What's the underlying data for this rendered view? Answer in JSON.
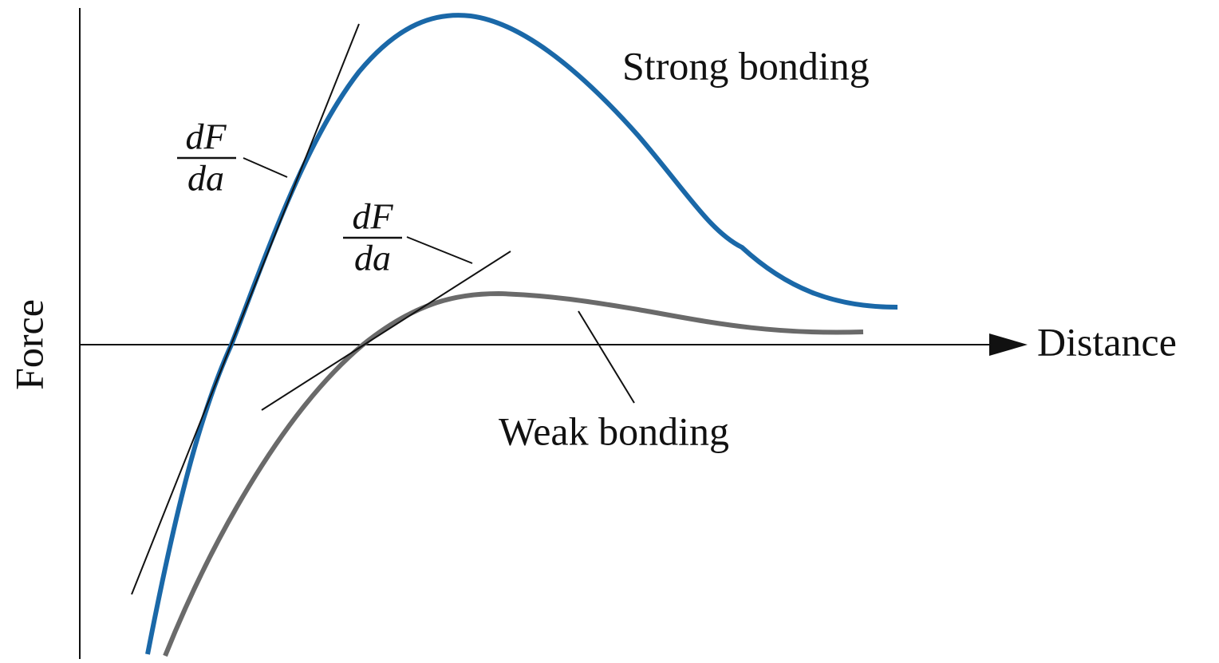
{
  "axes": {
    "y_label": "Force",
    "x_label": "Distance"
  },
  "curves": [
    {
      "label": "Strong bonding"
    },
    {
      "label": "Weak bonding"
    }
  ],
  "annotations": [
    {
      "numerator": "dF",
      "denominator": "da"
    },
    {
      "numerator": "dF",
      "denominator": "da"
    }
  ]
}
